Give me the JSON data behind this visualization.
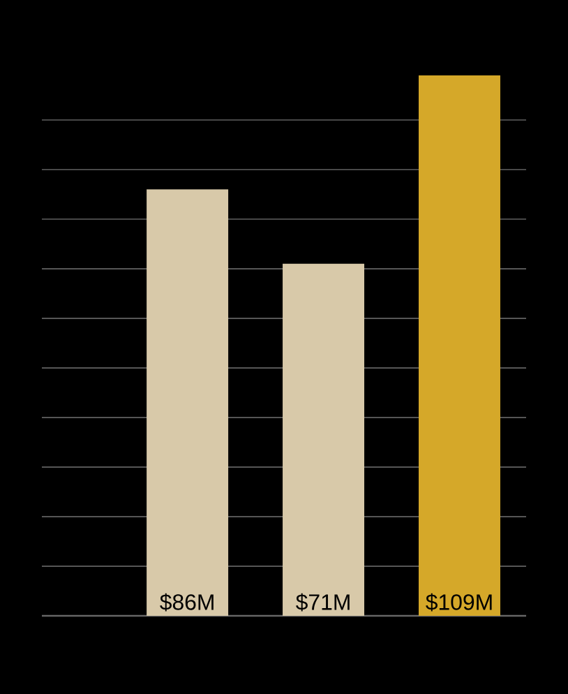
{
  "chart_data": {
    "type": "bar",
    "categories": [
      null,
      null,
      null
    ],
    "values": [
      86,
      71,
      109
    ],
    "colors": [
      "#d8c9a9",
      "#d8c9a9",
      "#d5a829"
    ],
    "value_labels": [
      "$86M",
      "$71M",
      "$109M"
    ],
    "tick_labels": false,
    "grid": "y"
  }
}
